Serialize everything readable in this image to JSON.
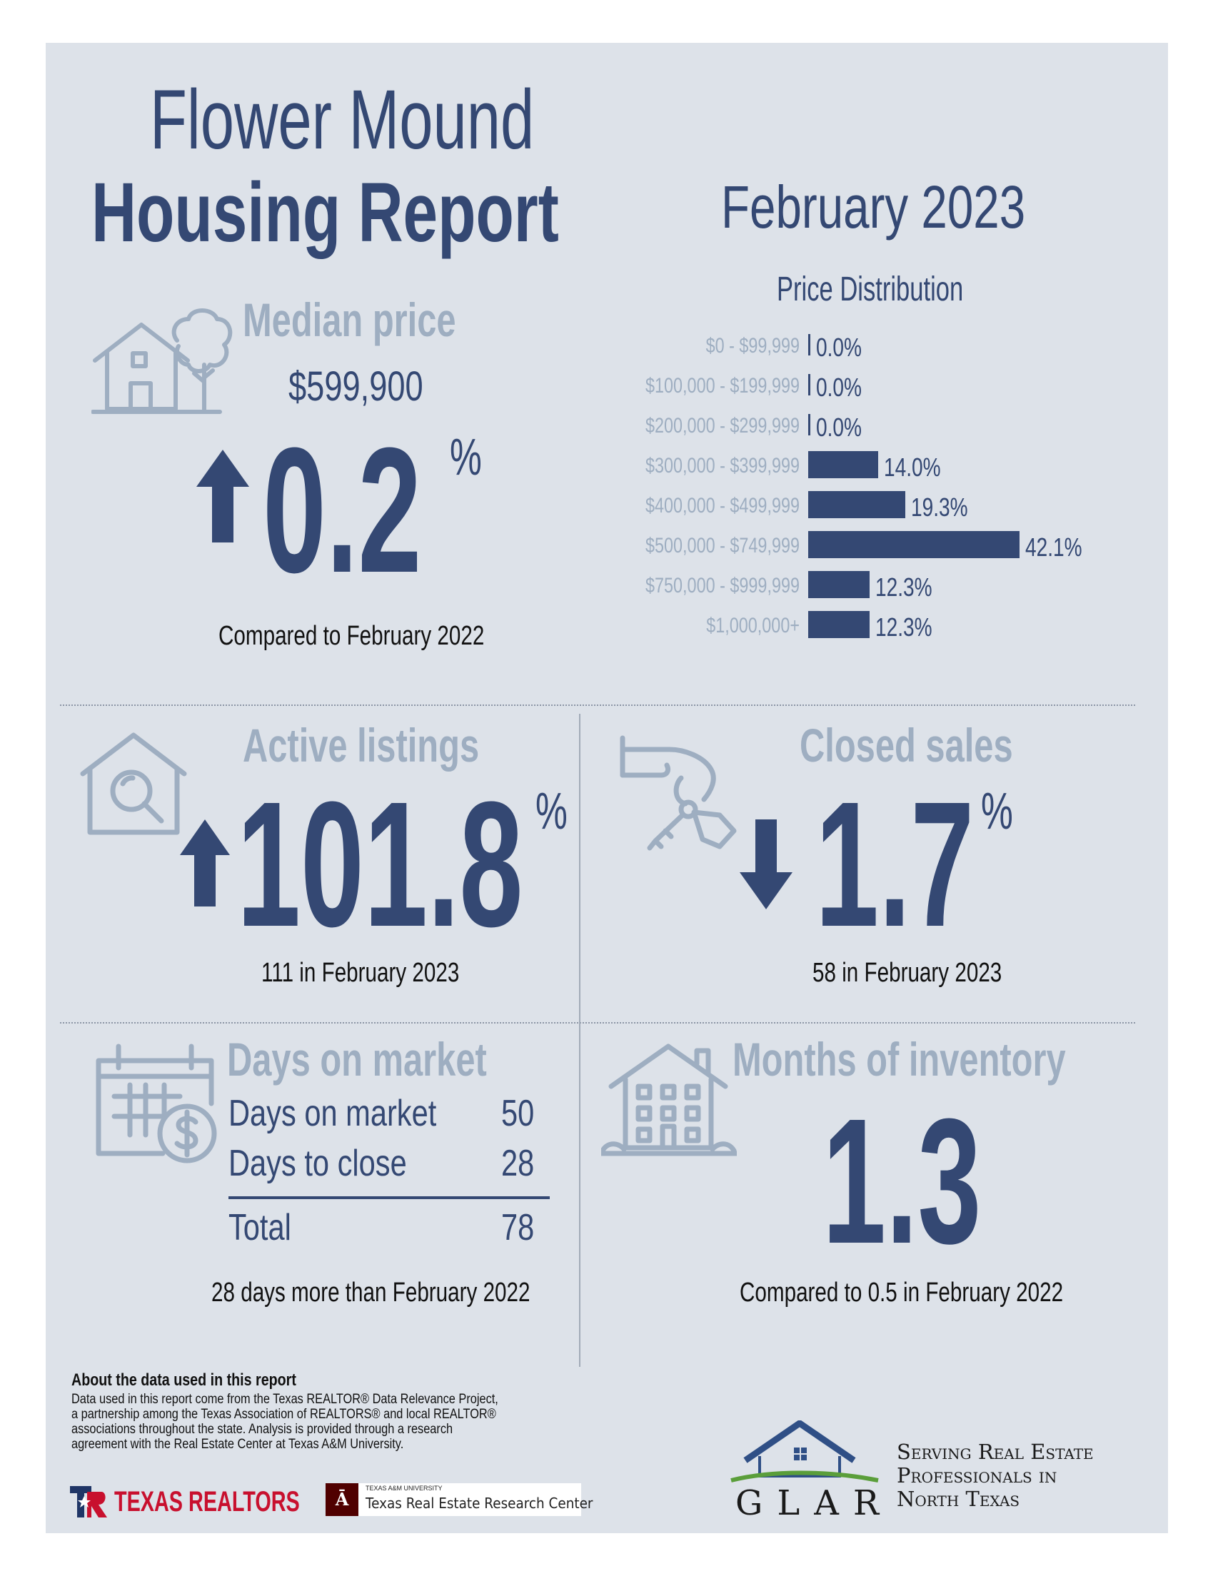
{
  "title": {
    "line1": "Flower Mound",
    "line2": "Housing Report",
    "month": "February 2023"
  },
  "median_price": {
    "label": "Median price",
    "value": "$599,900",
    "change": "0.2",
    "unit": "%",
    "direction": "up",
    "caption": "Compared to February 2022",
    "icon": "house-tree-icon"
  },
  "price_distribution": {
    "title": "Price Distribution",
    "chart_data": {
      "type": "bar",
      "orientation": "horizontal",
      "title": "Price Distribution",
      "categories": [
        "$0 - $99,999",
        "$100,000 - $199,999",
        "$200,000 - $299,999",
        "$300,000 - $399,999",
        "$400,000 - $499,999",
        "$500,000 - $749,999",
        "$750,000 - $999,999",
        "$1,000,000+"
      ],
      "values": [
        0.0,
        0.0,
        0.0,
        14.0,
        19.3,
        42.1,
        12.3,
        12.3
      ],
      "value_labels": [
        "0.0%",
        "0.0%",
        "0.0%",
        "14.0%",
        "19.3%",
        "42.1%",
        "12.3%",
        "12.3%"
      ],
      "color": "#344873"
    }
  },
  "active_listings": {
    "label": "Active listings",
    "change": "101.8",
    "unit": "%",
    "direction": "up",
    "caption": "111 in February 2023",
    "icon": "house-search-icon"
  },
  "closed_sales": {
    "label": "Closed sales",
    "change": "1.7",
    "unit": "%",
    "direction": "down",
    "caption": "58 in February 2023",
    "icon": "hand-keys-icon"
  },
  "days_on_market": {
    "label": "Days on market",
    "rows": [
      {
        "label": "Days on market",
        "value": "50"
      },
      {
        "label": "Days to close",
        "value": "28"
      }
    ],
    "total": {
      "label": "Total",
      "value": "78"
    },
    "caption": "28 days more than February 2022",
    "icon": "calendar-dollar-icon"
  },
  "months_inventory": {
    "label": "Months of inventory",
    "value": "1.3",
    "caption": "Compared to 0.5 in February 2022",
    "icon": "apartment-house-icon"
  },
  "about": {
    "heading": "About the data used in this report",
    "text": "Data used in this report come from the Texas REALTOR® Data Relevance Project, a partnership among the Texas Association of REALTORS® and local REALTOR® associations throughout the state. Analysis is provided through a research agreement with the Real Estate Center at Texas A&M University."
  },
  "logos": {
    "texas_realtors": "TEXAS REALTORS",
    "tamu_small": "TEXAS A&M UNIVERSITY",
    "tamu": "Texas Real Estate Research Center",
    "glar": "GLAR",
    "glar_tagline": [
      "Serving Real Estate",
      "Professionals in",
      "North Texas"
    ]
  },
  "colors": {
    "navy": "#344873",
    "steel": "#9eaec1",
    "panel": "#dde2e9",
    "texas_red": "#c8102e",
    "tamu_maroon": "#500000",
    "glar_green": "#5a9e3a"
  }
}
